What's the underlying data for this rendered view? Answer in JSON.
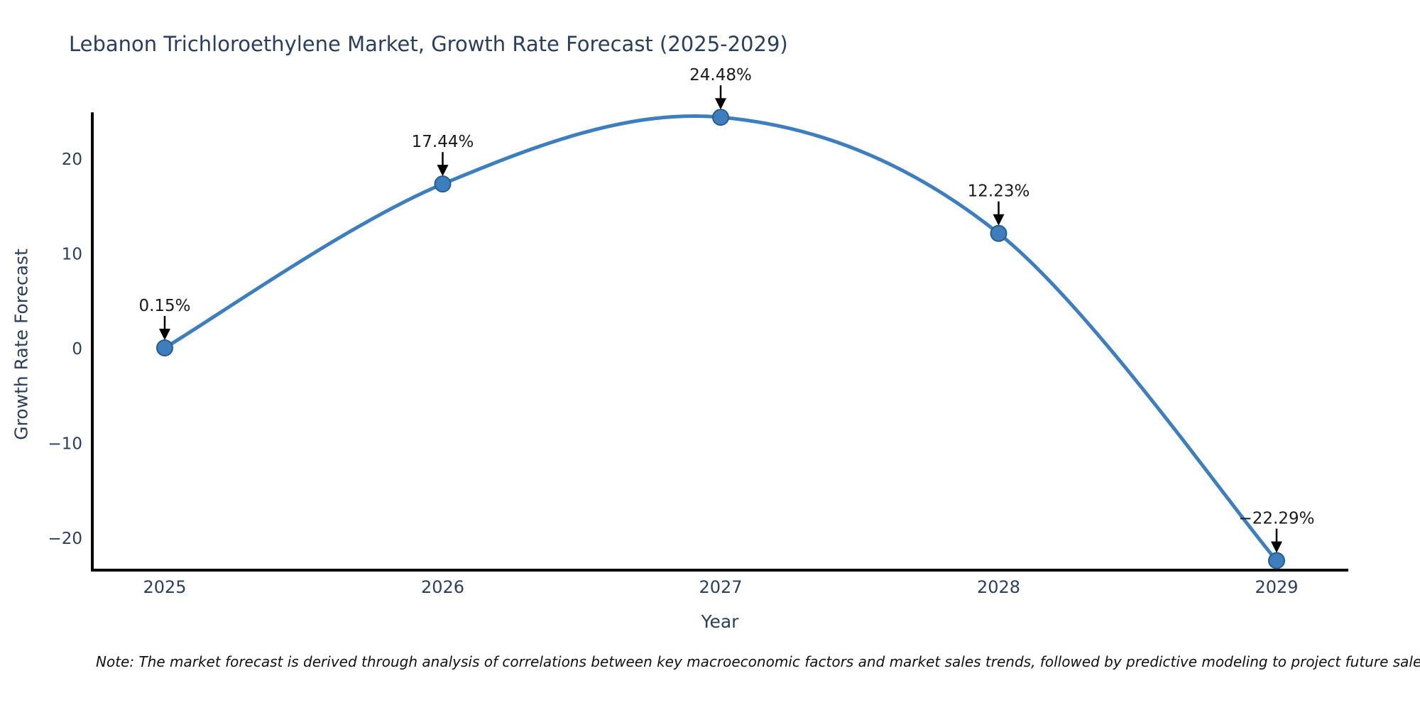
{
  "page": {
    "background_color": "#ffffff"
  },
  "chart_data": {
    "type": "line",
    "title": "Lebanon Trichloroethylene Market, Growth Rate Forecast (2025-2029)",
    "xlabel": "Year",
    "ylabel": "Growth Rate Forecast",
    "x": [
      2025,
      2026,
      2027,
      2028,
      2029
    ],
    "values": [
      0.15,
      17.44,
      24.48,
      12.23,
      -22.29
    ],
    "point_labels": [
      "0.15%",
      "17.44%",
      "24.48%",
      "12.23%",
      "−22.29%"
    ],
    "xtick_labels": [
      "2025",
      "2026",
      "2027",
      "2028",
      "2029"
    ],
    "yticks": [
      20,
      10,
      0,
      -10,
      -20
    ],
    "ytick_labels": [
      "20",
      "10",
      "0",
      "−10",
      "−20"
    ],
    "ylim": [
      -23.3,
      25.0
    ],
    "grid": false,
    "legend_position": "none",
    "line_color": "#3d7ebf",
    "marker_fill_color": "#3d7ebf",
    "marker_edge_color": "#2a5d8c",
    "annotation_text_color": "#1a1a1a",
    "annotation_arrow_color": "#000000",
    "axis_spine_color": "#000000",
    "text_color": "#2a3f5f"
  },
  "note": {
    "text": "Note: The market forecast is derived through analysis of correlations between key macroeconomic factors and market sales trends, followed by predictive modeling to project future sales."
  }
}
